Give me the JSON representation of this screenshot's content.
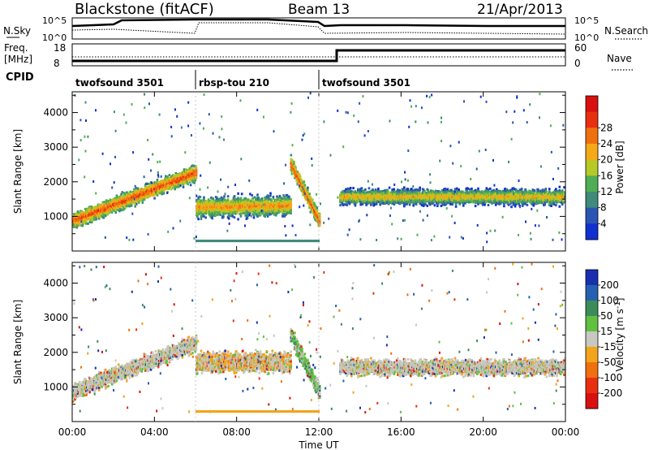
{
  "header": {
    "station": "Blackstone (fitACF)",
    "beam": "Beam 13",
    "date": "21/Apr/2013"
  },
  "side_labels": {
    "nsky": "N.Sky",
    "nsearch": "N.Search",
    "freq_line1": "Freq.",
    "freq_line2": "[MHz]",
    "nave": "Nave",
    "cpid": "CPID",
    "nsky_tick_top": "10^5",
    "nsky_tick_bottom": "10^0",
    "nsearch_tick_top": "10^5",
    "nsearch_tick_bottom": "10^0",
    "freq_tick_top": "18",
    "freq_tick_bottom": "8",
    "nave_tick_top": "60",
    "nave_tick_bottom": "0"
  },
  "cpid_segments": [
    {
      "label": "twofsound 3501",
      "start_hour": 0,
      "end_hour": 6
    },
    {
      "label": "rbsp-tou 210",
      "start_hour": 6,
      "end_hour": 12
    },
    {
      "label": "twofsound 3501",
      "start_hour": 12,
      "end_hour": 24
    }
  ],
  "chart_data": [
    {
      "type": "heatmap",
      "title": "",
      "xlabel": "Time UT",
      "ylabel": "Slant Range [km]",
      "xlim": [
        0,
        24
      ],
      "ylim": [
        0,
        4600
      ],
      "x_ticks": [
        "00:00",
        "04:00",
        "08:00",
        "12:00",
        "16:00",
        "20:00",
        "00:00"
      ],
      "y_ticks": [
        1000,
        2000,
        3000,
        4000
      ],
      "colorbar": {
        "label": "Power [dB]",
        "ticks": [
          "4",
          "8",
          "12",
          "16",
          "20",
          "24",
          "28"
        ],
        "colors": [
          "#1030d0",
          "#2a55b0",
          "#3f8a78",
          "#4fae55",
          "#b8c824",
          "#f5a818",
          "#f07010",
          "#e83010",
          "#d81010"
        ]
      },
      "echo_bands": [
        {
          "start_hour": 0.0,
          "end_hour": 6.0,
          "range_start_km": 850,
          "range_end_km": 2250,
          "power_db": 26
        },
        {
          "start_hour": 6.0,
          "end_hour": 10.6,
          "range_start_km": 1250,
          "range_end_km": 1300,
          "power_db": 22
        },
        {
          "start_hour": 10.6,
          "end_hour": 12.0,
          "range_start_km": 2500,
          "range_end_km": 850,
          "power_db": 26
        },
        {
          "start_hour": 13.0,
          "end_hour": 24.0,
          "range_start_km": 1550,
          "range_end_km": 1550,
          "power_db": 20
        }
      ]
    },
    {
      "type": "heatmap",
      "title": "",
      "xlabel": "Time UT",
      "ylabel": "Slant Range [km]",
      "xlim": [
        0,
        24
      ],
      "ylim": [
        0,
        4600
      ],
      "x_ticks": [
        "00:00",
        "04:00",
        "08:00",
        "12:00",
        "16:00",
        "20:00",
        "00:00"
      ],
      "y_ticks": [
        1000,
        2000,
        3000,
        4000
      ],
      "colorbar": {
        "label": "Velocity [m s^-1]",
        "ticks": [
          "200",
          "100",
          "50",
          "15",
          "-15",
          "-50",
          "-100",
          "-200"
        ],
        "colors": [
          "#1a2fb0",
          "#2660b0",
          "#3c8c5a",
          "#60c040",
          "#c8c8c0",
          "#f2a41a",
          "#f07010",
          "#e83010",
          "#d81010"
        ]
      },
      "echo_bands": [
        {
          "start_hour": 0.0,
          "end_hour": 6.0,
          "range_start_km": 850,
          "range_end_km": 2250,
          "velocity": 0
        },
        {
          "start_hour": 6.0,
          "end_hour": 10.6,
          "range_start_km": 1700,
          "range_end_km": 1700,
          "velocity": 0
        },
        {
          "start_hour": 10.6,
          "end_hour": 12.0,
          "range_start_km": 2500,
          "range_end_km": 850,
          "velocity": 20
        },
        {
          "start_hour": 13.0,
          "end_hour": 24.0,
          "range_start_km": 1550,
          "range_end_km": 1550,
          "velocity": 0
        }
      ]
    }
  ]
}
